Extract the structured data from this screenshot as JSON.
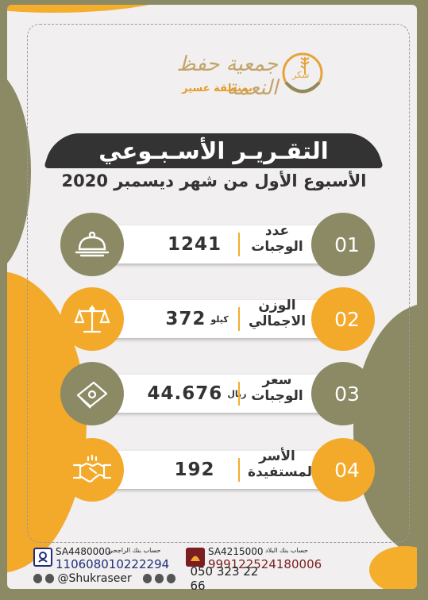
{
  "logo": {
    "title": "جمعية حفظ النعمة",
    "subtitle": "بمنطقة عسير",
    "mark_text": "شكر"
  },
  "header": {
    "title": "التقـريـر الأسـبـوعي",
    "subtitle": "الأسبوع الأول من شهر ديسمبر 2020"
  },
  "stats": [
    {
      "index": "01",
      "label": "عدد\nالوجبات",
      "value": "1241",
      "unit": "",
      "icon": "serving-cloche-icon",
      "circle": "olive"
    },
    {
      "index": "02",
      "label": "الوزن\nالاجمالي",
      "value": "372",
      "unit": "كيلو",
      "icon": "scale-icon",
      "circle": "orange"
    },
    {
      "index": "03",
      "label": "سعر\nالوجبات",
      "value": "44.676",
      "unit": "ريال",
      "icon": "money-icon",
      "circle": "olive"
    },
    {
      "index": "04",
      "label": "الأسر\nالمستفيدة",
      "value": "192",
      "unit": "",
      "icon": "handshake-icon",
      "circle": "orange"
    }
  ],
  "footer": {
    "accounts": [
      {
        "bank": "حساب بنك الراجحي",
        "code": "SA4480000",
        "iban": "110608010222294",
        "icon": "alrajhi-logo-icon"
      },
      {
        "bank": "حساب بنك البلاد",
        "code": "SA4215000",
        "iban": "999122524180006",
        "icon": "albilad-logo-icon"
      }
    ],
    "handle": "@Shukraseer",
    "phone": "050 323 22 66"
  },
  "colors": {
    "olive": "#8b8a64",
    "orange": "#f3a929",
    "dark": "#333333",
    "navy": "#1f2f7a",
    "maroon": "#7b1e22"
  }
}
